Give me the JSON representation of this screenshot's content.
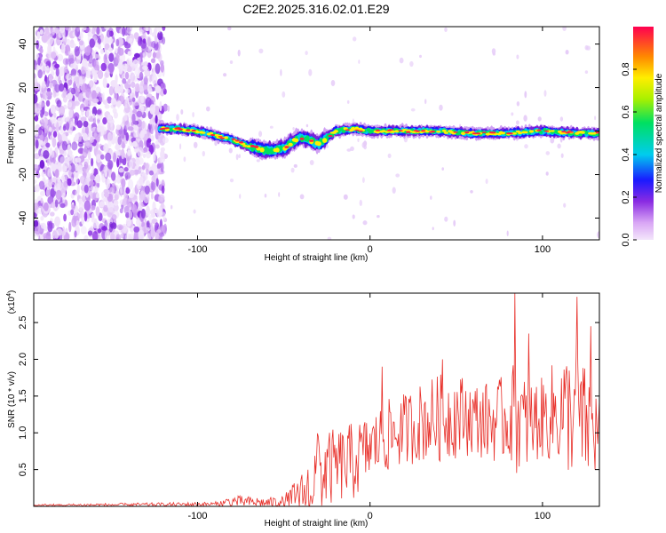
{
  "title": "C2E2.2025.316.02.01.E29",
  "chart_data": [
    {
      "type": "heatmap",
      "title": "C2E2.2025.316.02.01.E29",
      "xlabel": "Height of straight line (km)",
      "ylabel": "Frequency (Hz)",
      "xlim": [
        -195,
        133
      ],
      "ylim": [
        -50,
        48
      ],
      "xticks": [
        -100,
        0,
        100
      ],
      "xtick_labels": [
        "-100",
        "0",
        "100"
      ],
      "yticks": [
        -40,
        -20,
        0,
        20,
        40
      ],
      "ytick_labels": [
        "-40",
        "-20",
        "0",
        "20",
        "40"
      ],
      "colorbar": {
        "label": "Normalized spectral amplitude",
        "range": [
          0,
          1
        ],
        "ticks": [
          0.0,
          0.2,
          0.4,
          0.6,
          0.8
        ],
        "tick_labels": [
          "0.0",
          "0.2",
          "0.4",
          "0.6",
          "0.8"
        ]
      },
      "ridge": {
        "description_points_x": [
          -122,
          -112,
          -100,
          -90,
          -80,
          -70,
          -60,
          -50,
          -45,
          -40,
          -35,
          -30,
          -25,
          -20,
          -10,
          0,
          20,
          40,
          60,
          80,
          100,
          120,
          133
        ],
        "frequency_hz": [
          1,
          1,
          0,
          -2,
          -4,
          -7,
          -9,
          -8,
          -5,
          -3,
          -4,
          -6,
          -3,
          0,
          1,
          0,
          0,
          0,
          -1,
          -1,
          0,
          -1,
          -1
        ]
      }
    },
    {
      "type": "line",
      "xlabel": "Height of straight line (km)",
      "ylabel": "SNR (10 * v/v)",
      "y_multiplier_label": "(x10",
      "y_multiplier_exp": "4",
      "y_multiplier_close": ")",
      "xlim": [
        -195,
        133
      ],
      "ylim": [
        0,
        2.9
      ],
      "xticks": [
        -100,
        0,
        100
      ],
      "xtick_labels": [
        "-100",
        "0",
        "100"
      ],
      "yticks": [
        0.5,
        1.0,
        1.5,
        2.0,
        2.5
      ],
      "ytick_labels": [
        "0.5",
        "1.0",
        "1.5",
        "2.0",
        "2.5"
      ],
      "line_color": "#e8302a",
      "envelope": {
        "x": [
          -195,
          -90,
          -80,
          -60,
          -50,
          -40,
          -35,
          -30,
          -20,
          -10,
          0,
          10,
          20,
          30,
          40,
          50,
          60,
          70,
          80,
          85,
          90,
          100,
          110,
          120,
          125,
          133
        ],
        "mean": [
          0.015,
          0.03,
          0.07,
          0.05,
          0.05,
          0.15,
          0.25,
          0.45,
          0.55,
          0.6,
          0.8,
          0.95,
          1.05,
          1.15,
          1.2,
          1.25,
          1.2,
          1.15,
          1.2,
          1.25,
          1.1,
          1.2,
          1.3,
          1.25,
          1.1,
          1.0
        ],
        "spread": [
          0.015,
          0.03,
          0.08,
          0.07,
          0.1,
          0.3,
          0.45,
          0.6,
          0.5,
          0.55,
          0.45,
          0.5,
          0.5,
          0.55,
          0.6,
          0.6,
          0.5,
          0.55,
          0.6,
          0.8,
          0.65,
          0.55,
          0.8,
          0.9,
          0.8,
          0.6
        ]
      },
      "peaks": [
        {
          "x": -30,
          "y": 0.95
        },
        {
          "x": 7,
          "y": 1.9
        },
        {
          "x": 42,
          "y": 2.0
        },
        {
          "x": 84,
          "y": 2.9
        },
        {
          "x": 92,
          "y": 2.35
        },
        {
          "x": 120,
          "y": 2.85
        },
        {
          "x": 128,
          "y": 2.45
        }
      ]
    }
  ]
}
